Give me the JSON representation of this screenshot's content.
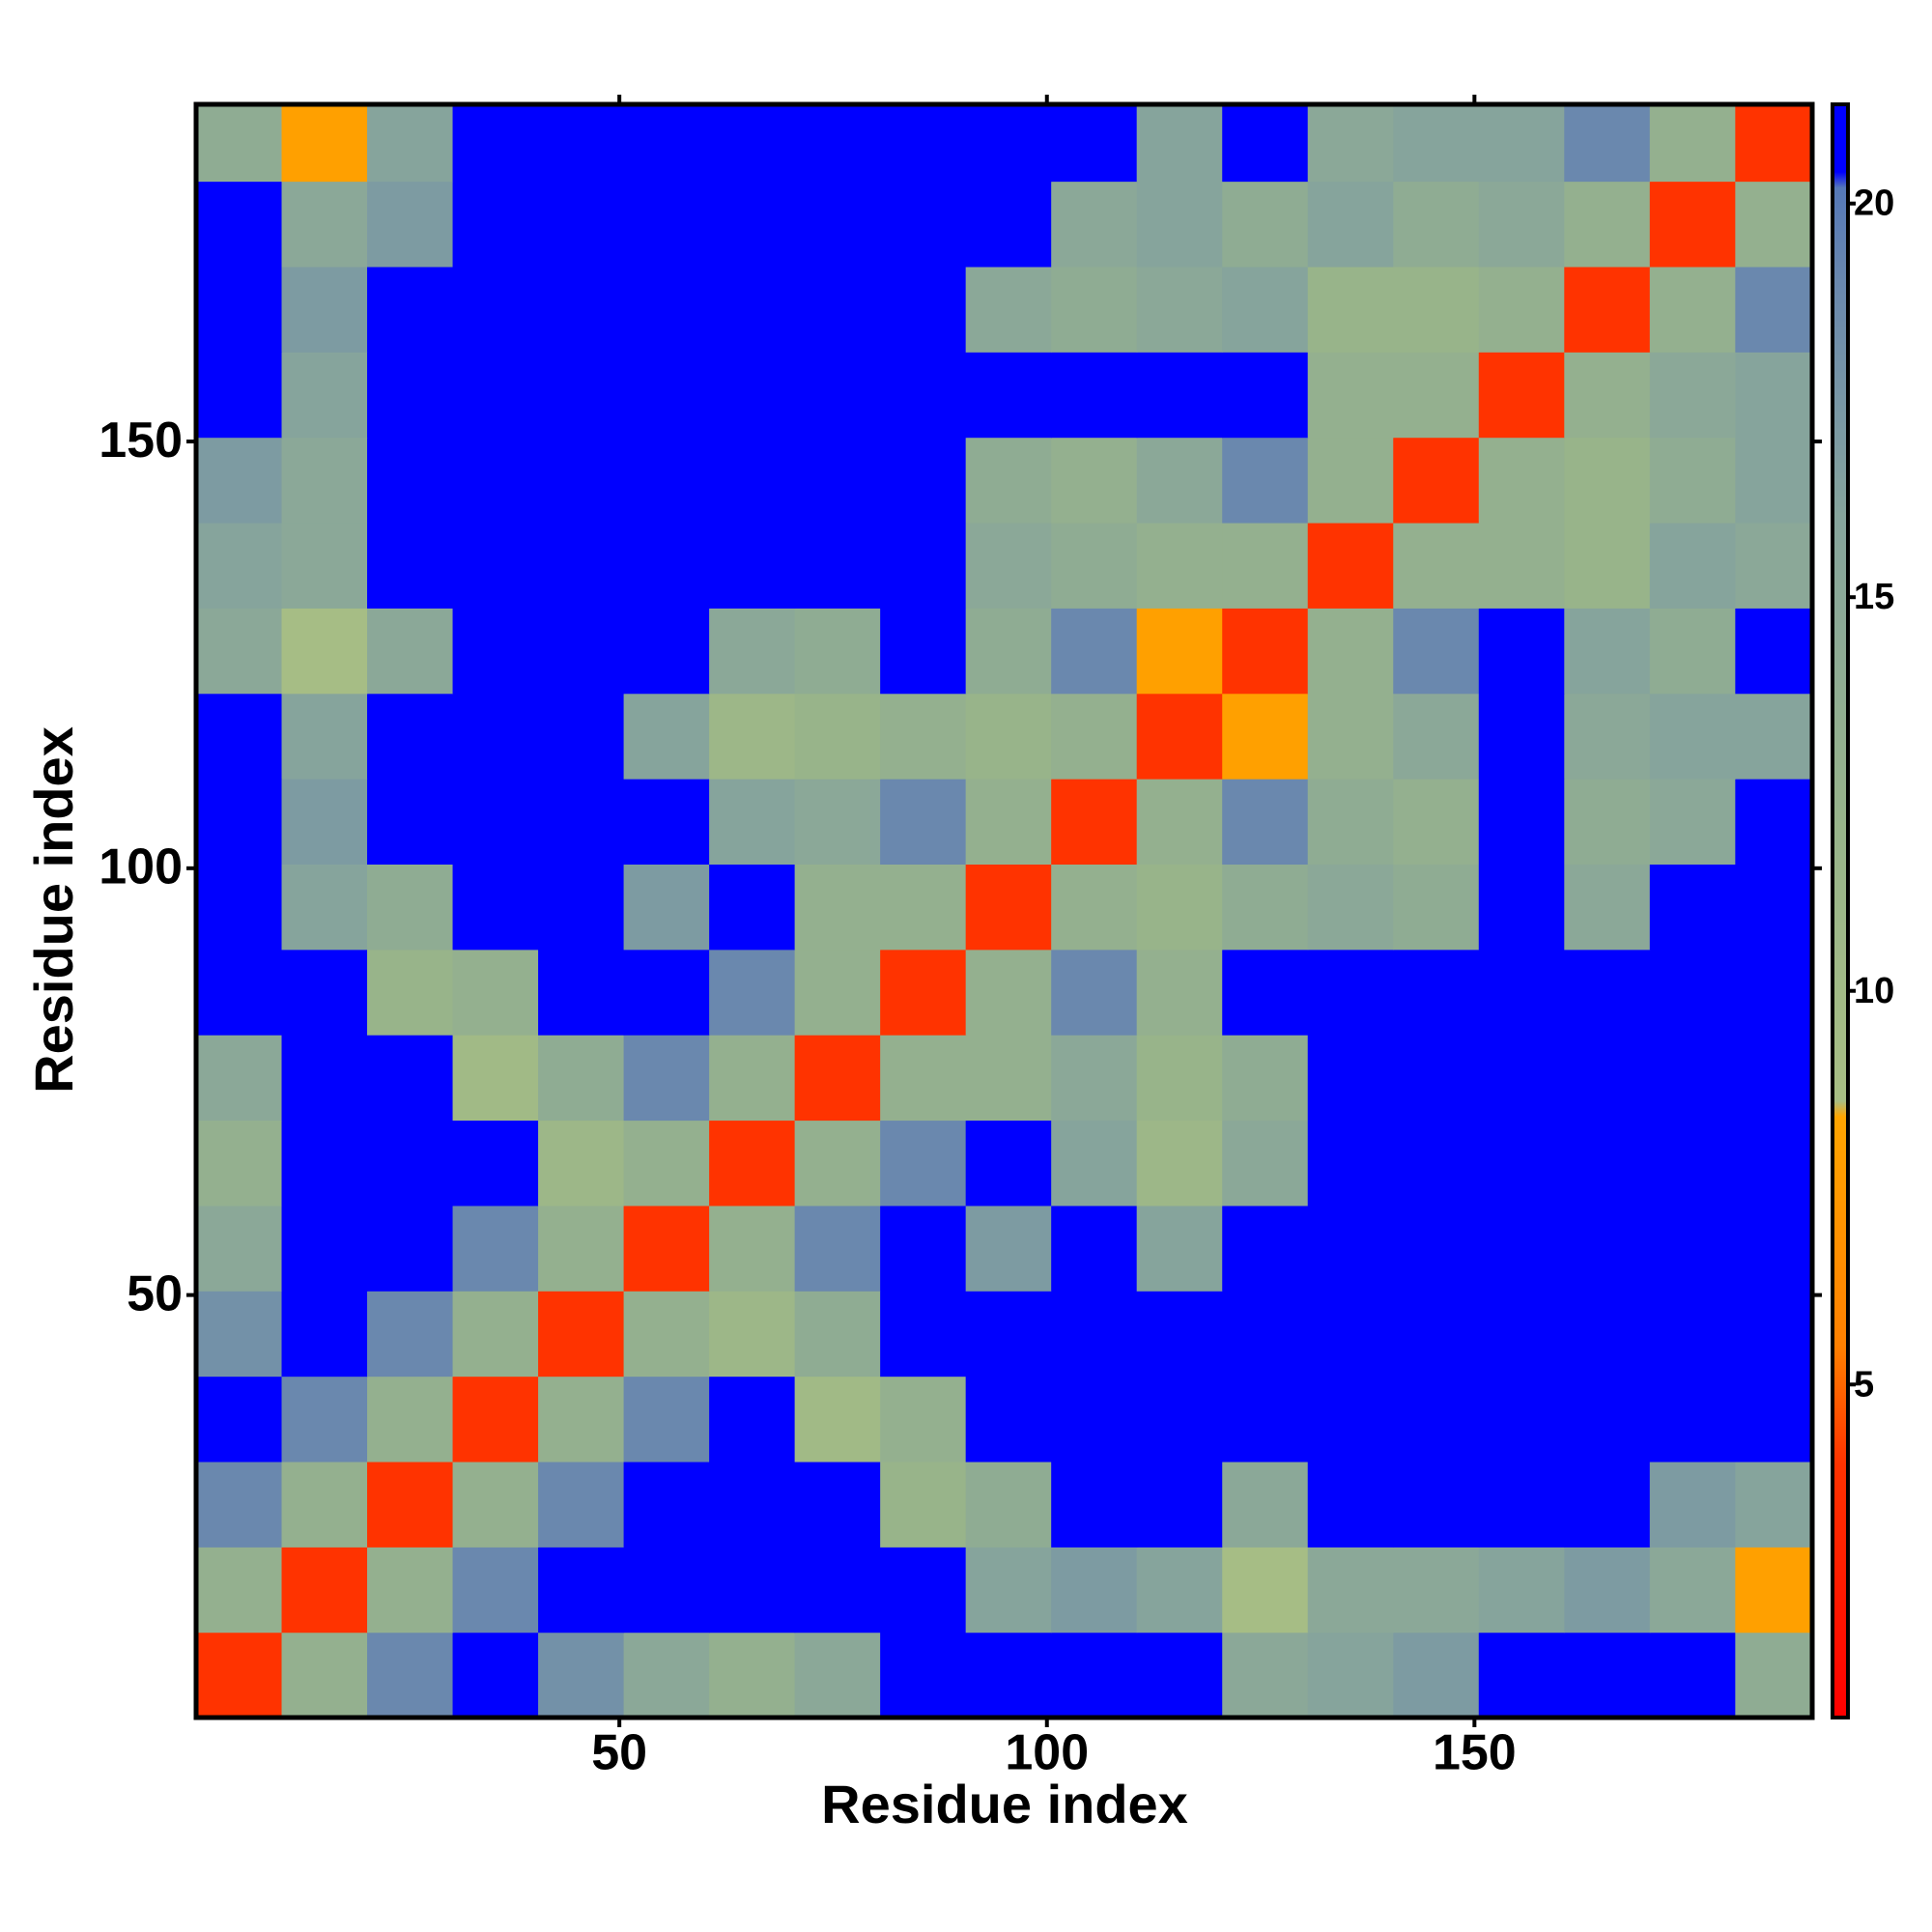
{
  "chart_data": {
    "type": "heatmap",
    "x_label": "Residue index",
    "y_label": "Residue index",
    "x_bins": [
      0.5,
      10.5,
      20.5,
      30.5,
      40.5,
      50.5,
      60.5,
      70.5,
      80.5,
      90.5,
      100.5,
      110.5,
      120.5,
      130.5,
      140.5,
      150.5,
      160.5,
      170.5,
      180.5,
      189.5
    ],
    "y_bins": [
      0.5,
      10.5,
      20.5,
      30.5,
      40.5,
      50.5,
      60.5,
      70.5,
      80.5,
      90.5,
      100.5,
      110.5,
      120.5,
      130.5,
      140.5,
      150.5,
      160.5,
      170.5,
      180.5,
      189.5
    ],
    "xlim": [
      0.5,
      189.5
    ],
    "ylim": [
      0.5,
      189.5
    ],
    "xticks": [
      50,
      100,
      150
    ],
    "yticks": [
      50,
      100,
      150
    ],
    "zlim": [
      0.77,
      21.26
    ],
    "zticks": [
      5,
      10,
      15,
      20
    ],
    "colorscale": [
      [
        0.77,
        "#ff0000"
      ],
      [
        4,
        "#ff3300"
      ],
      [
        5.5,
        "#ff8000"
      ],
      [
        8.4,
        "#ffa500"
      ],
      [
        8.6,
        "#a8be84"
      ],
      [
        12,
        "#98b48a"
      ],
      [
        16,
        "#86a49c"
      ],
      [
        19,
        "#6a88ae"
      ],
      [
        20.2,
        "#5578b8"
      ],
      [
        20.4,
        "#0000ff"
      ],
      [
        21.26,
        "#0000ff"
      ]
    ],
    "z": [
      [
        4,
        13,
        19,
        21,
        18,
        15,
        13,
        15,
        21,
        21,
        21,
        21,
        15,
        16,
        17,
        21,
        21,
        21,
        14
      ],
      [
        13,
        4,
        13,
        19,
        21,
        21,
        21,
        21,
        21,
        16,
        17,
        16,
        9,
        15,
        15,
        16,
        17,
        15,
        8
      ],
      [
        19,
        13,
        4,
        13,
        19,
        21,
        21,
        21,
        12,
        14,
        21,
        21,
        15,
        21,
        21,
        21,
        21,
        17,
        16
      ],
      [
        21,
        19,
        13,
        4,
        13,
        19,
        21,
        10,
        13,
        21,
        21,
        21,
        21,
        21,
        21,
        21,
        21,
        21,
        21
      ],
      [
        18,
        21,
        19,
        13,
        4,
        13,
        11,
        14,
        21,
        21,
        21,
        21,
        21,
        21,
        21,
        21,
        21,
        21,
        21
      ],
      [
        15,
        21,
        21,
        19,
        13,
        4,
        13,
        19,
        21,
        17,
        21,
        16,
        21,
        21,
        21,
        21,
        21,
        21,
        21
      ],
      [
        13,
        21,
        21,
        21,
        11,
        13,
        4,
        13,
        19,
        21,
        16,
        11,
        15,
        21,
        21,
        21,
        21,
        21,
        21
      ],
      [
        15,
        21,
        21,
        10,
        14,
        19,
        13,
        4,
        13,
        13,
        15,
        12,
        14,
        21,
        21,
        21,
        21,
        21,
        21
      ],
      [
        21,
        21,
        12,
        13,
        21,
        21,
        19,
        13,
        4,
        13,
        19,
        13,
        21,
        21,
        21,
        21,
        21,
        21,
        21
      ],
      [
        21,
        16,
        14,
        21,
        21,
        17,
        21,
        13,
        13,
        4,
        13,
        12,
        14,
        15,
        14,
        21,
        15,
        21,
        21
      ],
      [
        21,
        17,
        21,
        21,
        21,
        21,
        16,
        15,
        19,
        13,
        4,
        13,
        19,
        14,
        13,
        21,
        14,
        15,
        21
      ],
      [
        21,
        16,
        21,
        21,
        21,
        16,
        11,
        12,
        13,
        12,
        13,
        4,
        8,
        13,
        15,
        21,
        15,
        16,
        16
      ],
      [
        15,
        9,
        15,
        21,
        21,
        21,
        15,
        14,
        21,
        14,
        19,
        8,
        4,
        13,
        19,
        21,
        16,
        14,
        21
      ],
      [
        16,
        15,
        21,
        21,
        21,
        21,
        21,
        21,
        21,
        15,
        14,
        13,
        13,
        4,
        13,
        13,
        12,
        16,
        15
      ],
      [
        17,
        15,
        21,
        21,
        21,
        21,
        21,
        21,
        21,
        14,
        13,
        15,
        19,
        13,
        4,
        13,
        12,
        14,
        16
      ],
      [
        21,
        16,
        21,
        21,
        21,
        21,
        21,
        21,
        21,
        21,
        21,
        21,
        21,
        13,
        13,
        4,
        13,
        15,
        16
      ],
      [
        21,
        17,
        21,
        21,
        21,
        21,
        21,
        21,
        21,
        15,
        14,
        15,
        16,
        12,
        12,
        13,
        4,
        13,
        19
      ],
      [
        21,
        15,
        17,
        21,
        21,
        21,
        21,
        21,
        21,
        21,
        15,
        16,
        14,
        16,
        14,
        15,
        13,
        4,
        13
      ],
      [
        14,
        8,
        16,
        21,
        21,
        21,
        21,
        21,
        21,
        21,
        21,
        16,
        21,
        15,
        16,
        16,
        19,
        13,
        4
      ]
    ]
  }
}
